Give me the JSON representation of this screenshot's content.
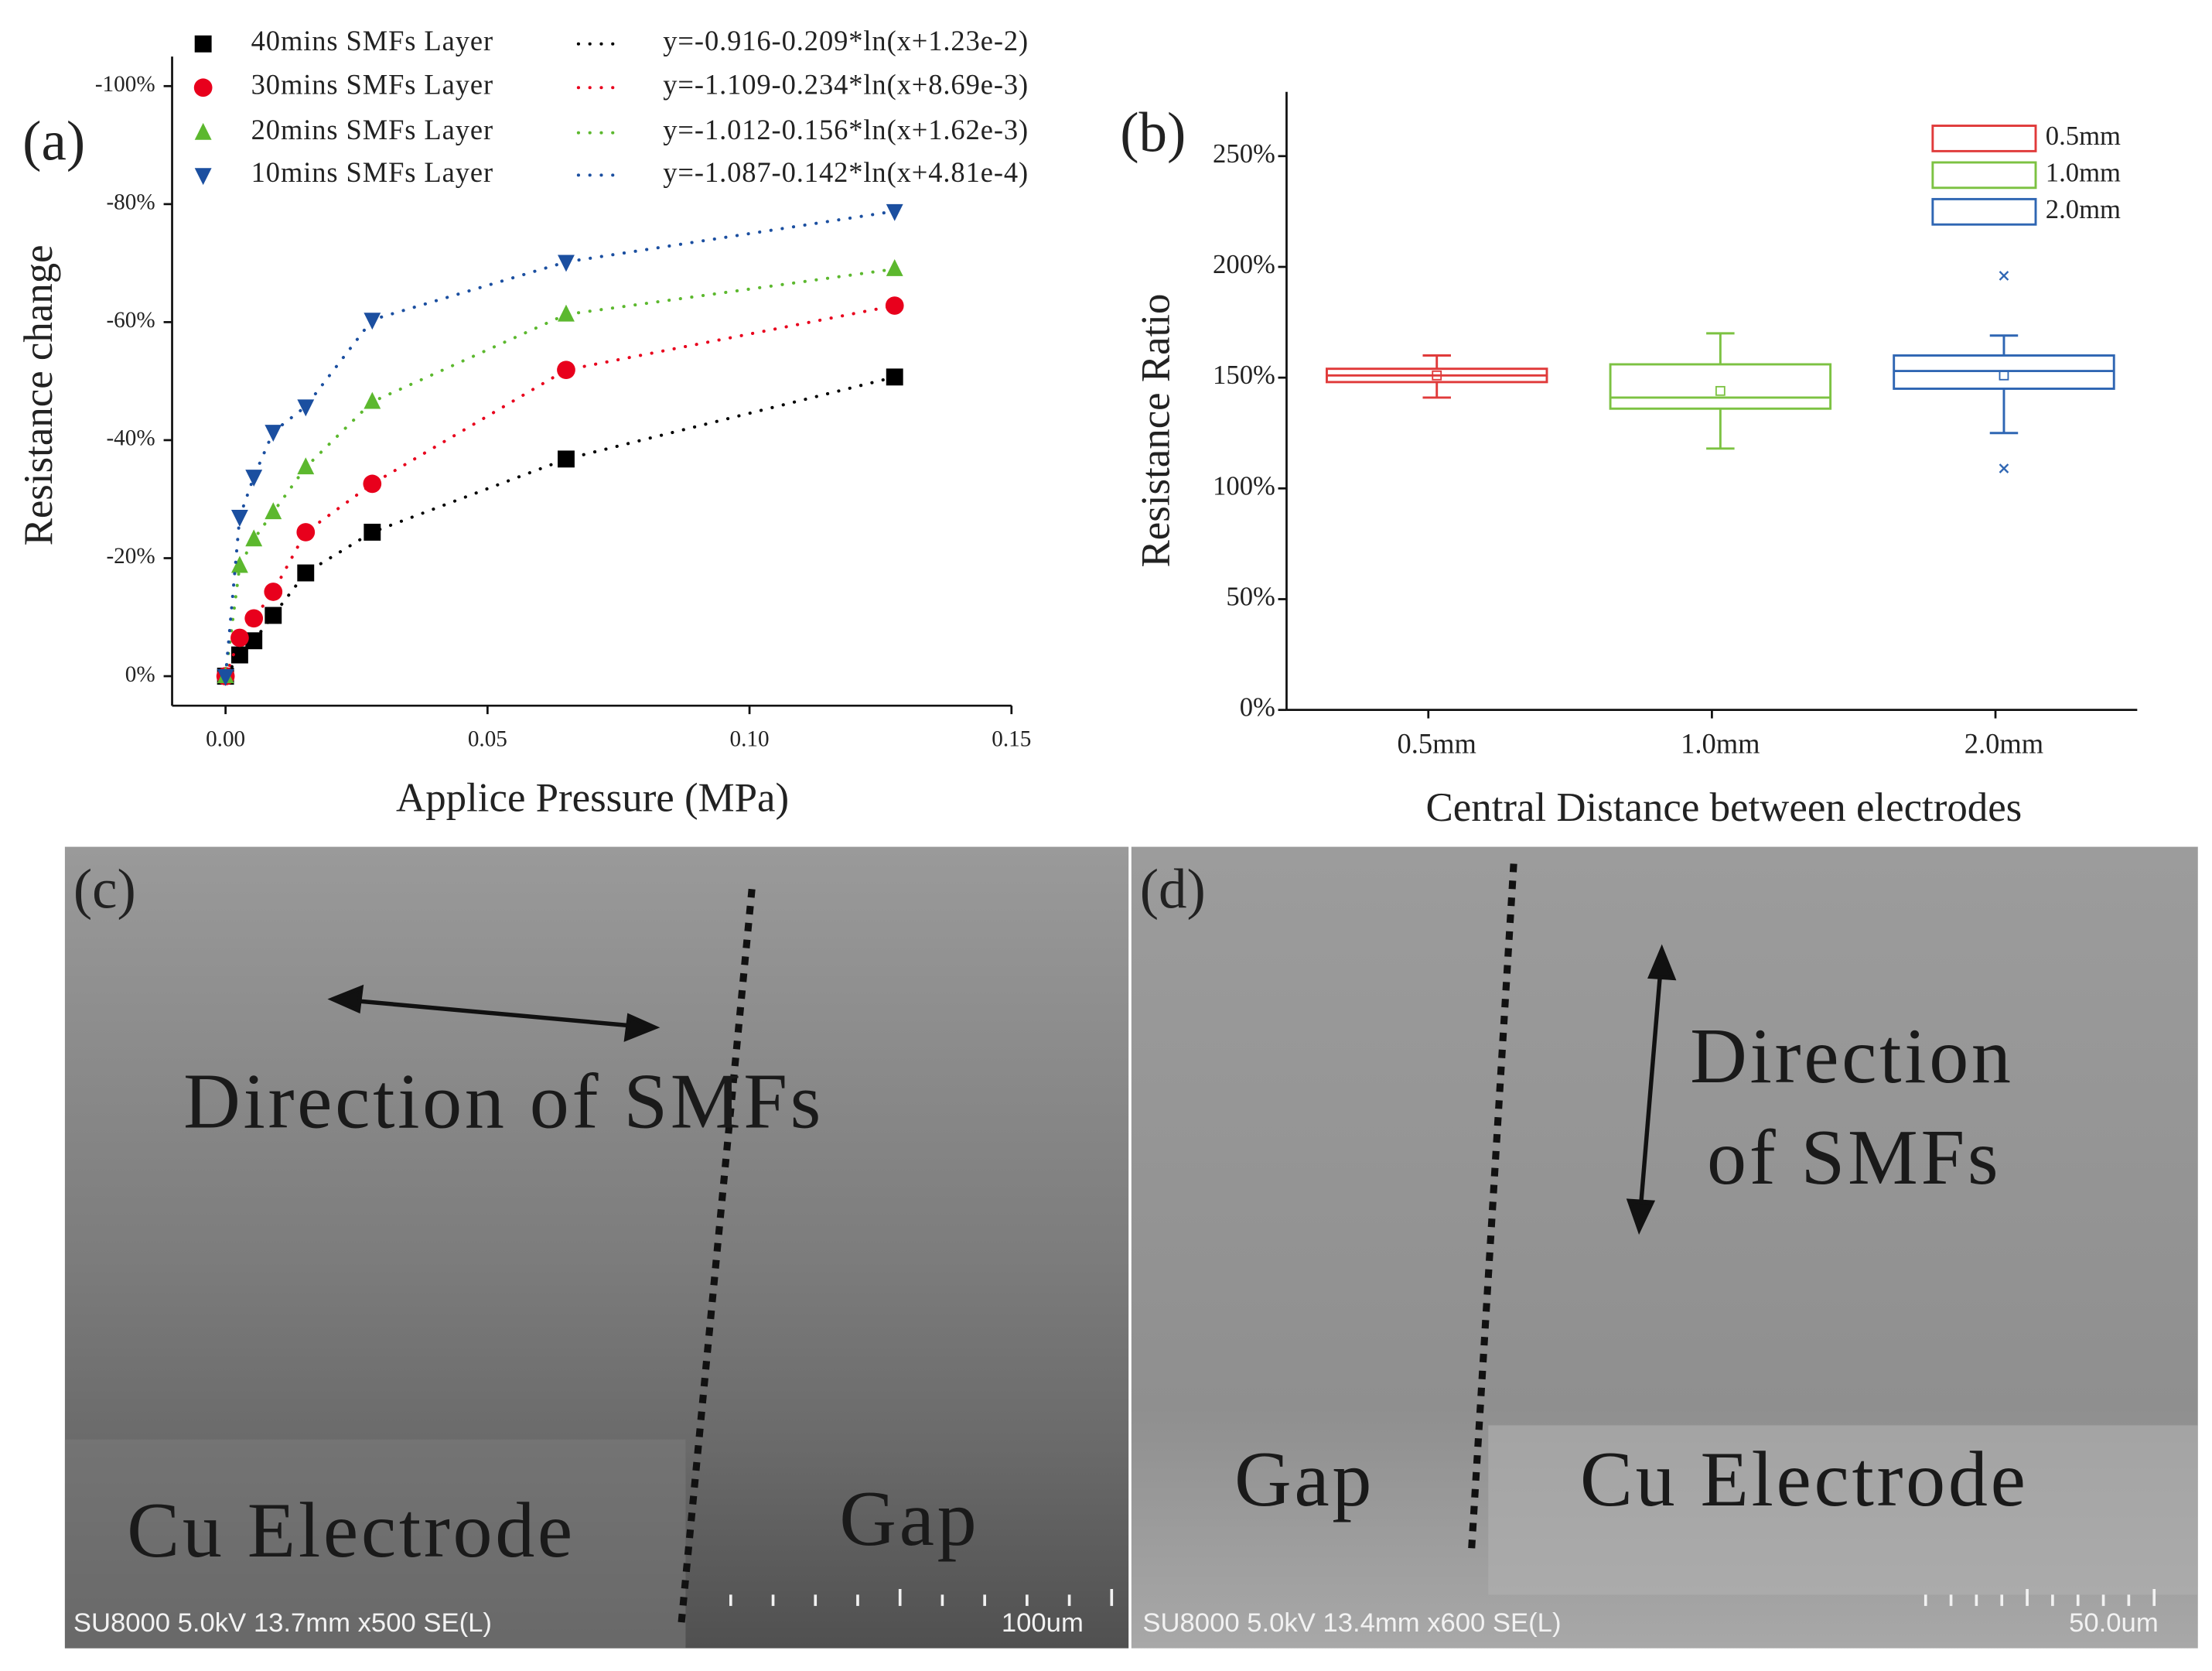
{
  "chart_data": [
    {
      "type": "scatter",
      "label": "(a)",
      "x_label": "Applice Pressure (MPa)",
      "y_label": "Resistance change",
      "x": [
        0,
        0.0027,
        0.0054,
        0.0091,
        0.0153,
        0.028,
        0.065,
        0.1277
      ],
      "series": [
        {
          "name": "40mins SMFs Layer",
          "fit": "y=-0.916-0.209*ln(x+1.23e-2)",
          "color": "#000000",
          "marker": "square",
          "values": [
            0,
            -3.6,
            -6,
            -10.3,
            -17.5,
            -24.4,
            -36.8,
            -50.7
          ]
        },
        {
          "name": "30mins SMFs Layer",
          "fit": "y=-1.109-0.234*ln(x+8.69e-3)",
          "color": "#e8001c",
          "marker": "circle",
          "values": [
            0,
            -6.5,
            -9.8,
            -14.3,
            -24.4,
            -32.6,
            -51.9,
            -62.8
          ]
        },
        {
          "name": "20mins SMFs Layer",
          "fit": "y=-1.012-0.156*ln(x+1.62e-3)",
          "color": "#5cb82e",
          "marker": "triangle-up",
          "values": [
            0,
            -18.7,
            -23.2,
            -27.8,
            -35.4,
            -46.5,
            -61.3,
            -69
          ]
        },
        {
          "name": "10mins SMFs Layer",
          "fit": "y=-1.087-0.142*ln(x+4.81e-4)",
          "color": "#1b4fa0",
          "marker": "triangle-down",
          "values": [
            0,
            -27,
            -33.8,
            -41.4,
            -45.7,
            -60.4,
            -70.2,
            -78.8
          ]
        }
      ],
      "xlim": [
        -0.0102,
        0.15
      ],
      "xticks": [
        {
          "value": 0,
          "label": "0.00"
        },
        {
          "value": 0.05,
          "label": "0.05"
        },
        {
          "value": 0.1,
          "label": "0.10"
        },
        {
          "value": 0.15,
          "label": "0.15"
        }
      ],
      "ylim": [
        5,
        -105
      ],
      "yticks": [
        {
          "value": 0,
          "label": "0%"
        },
        {
          "value": -20,
          "label": "-20%"
        },
        {
          "value": -40,
          "label": "-40%"
        },
        {
          "value": -60,
          "label": "-60%"
        },
        {
          "value": -80,
          "label": "-80%"
        },
        {
          "value": -100,
          "label": "-100%"
        }
      ]
    },
    {
      "type": "box",
      "label": "(b)",
      "x_label": "Central Distance between electrodes",
      "y_label": "Resistance Ratio",
      "categories": [
        "0.5mm",
        "1.0mm",
        "2.0mm"
      ],
      "series": [
        {
          "name": "0.5mm",
          "color": "#e03a3a",
          "min": 141,
          "q1": 148,
          "median": 151,
          "q3": 154,
          "max": 160,
          "mean": 151,
          "outliers": []
        },
        {
          "name": "1.0mm",
          "color": "#7cc242",
          "min": 118,
          "q1": 136,
          "median": 141,
          "q3": 156,
          "max": 170,
          "mean": 144,
          "outliers": []
        },
        {
          "name": "2.0mm",
          "color": "#2f66b3",
          "min": 125,
          "q1": 145,
          "median": 153,
          "q3": 160,
          "max": 169,
          "mean": 151,
          "outliers": [
            196,
            109
          ]
        }
      ],
      "ylim": [
        0,
        279
      ],
      "yticks": [
        {
          "value": 0,
          "label": "0%"
        },
        {
          "value": 50,
          "label": "50%"
        },
        {
          "value": 100,
          "label": "100%"
        },
        {
          "value": 150,
          "label": "150%"
        },
        {
          "value": 200,
          "label": "200%"
        },
        {
          "value": 250,
          "label": "250%"
        }
      ]
    }
  ],
  "images": [
    {
      "label": "(c)",
      "annotations": [
        "Direction of SMFs",
        "Cu Electrode",
        "Gap"
      ],
      "info": "SU8000 5.0kV 13.7mm x500 SE(L)",
      "scale": "100um"
    },
    {
      "label": "(d)",
      "annotations": [
        "Direction",
        "of SMFs",
        "Gap",
        "Cu Electrode"
      ],
      "info": "SU8000 5.0kV 13.4mm x600 SE(L)",
      "scale": "50.0um"
    }
  ]
}
